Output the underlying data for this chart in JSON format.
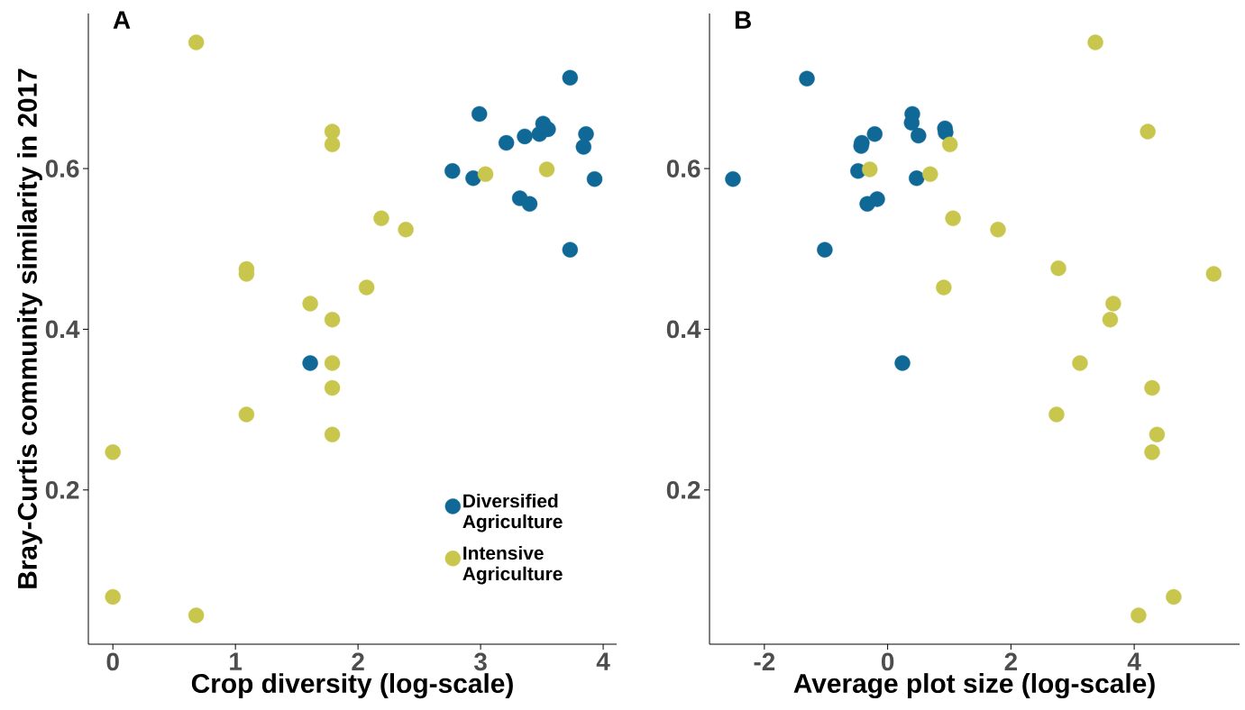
{
  "chart_data": [
    {
      "type": "scatter",
      "title": "A",
      "xlabel": "Crop diversity (log-scale)",
      "ylabel": "Bray-Curtis community similarity in 2017",
      "xlim": [
        -0.2,
        4.11
      ],
      "ylim": [
        0.008,
        0.793
      ],
      "xticks": [
        0,
        1,
        2,
        3,
        4
      ],
      "yticks": [
        0.2,
        0.4,
        0.6
      ],
      "marker": "circle",
      "legend": "bottom right",
      "series": [
        {
          "name": "Diversified Agriculture",
          "color": "#0f6896",
          "x": [
            3.73,
            2.99,
            3.21,
            3.36,
            3.51,
            3.48,
            3.55,
            3.86,
            3.84,
            2.77,
            2.94,
            3.32,
            3.4,
            3.93,
            3.73,
            1.61
          ],
          "values": [
            0.713,
            0.668,
            0.632,
            0.64,
            0.656,
            0.643,
            0.649,
            0.643,
            0.627,
            0.597,
            0.588,
            0.563,
            0.556,
            0.587,
            0.499,
            0.358
          ]
        },
        {
          "name": "Intensive Agriculture",
          "color": "#c8c64c",
          "x": [
            0.68,
            3.04,
            3.54,
            1.79,
            1.79,
            2.19,
            2.39,
            1.09,
            1.09,
            2.07,
            1.61,
            1.79,
            1.79,
            1.79,
            1.09,
            1.79,
            0,
            0,
            0.68
          ],
          "values": [
            0.757,
            0.593,
            0.599,
            0.646,
            0.63,
            0.538,
            0.524,
            0.475,
            0.469,
            0.452,
            0.432,
            0.412,
            0.358,
            0.327,
            0.294,
            0.269,
            0.247,
            0.067,
            0.044
          ]
        }
      ]
    },
    {
      "type": "scatter",
      "title": "B",
      "xlabel": "Average plot size (log-scale)",
      "xlim": [
        -2.89,
        5.71
      ],
      "ylim": [
        0.008,
        0.793
      ],
      "xticks": [
        -2,
        0,
        2,
        4
      ],
      "yticks": [
        0.2,
        0.4,
        0.6
      ],
      "marker": "circle",
      "series": [
        {
          "color": "#0f6896",
          "x": [
            -1.31,
            0.4,
            0.39,
            0.5,
            0.93,
            0.94,
            -0.21,
            -0.42,
            -0.43,
            -0.48,
            0.47,
            -0.33,
            -0.17,
            -2.51,
            -1.02,
            0.24
          ],
          "values": [
            0.712,
            0.668,
            0.657,
            0.641,
            0.65,
            0.645,
            0.643,
            0.632,
            0.628,
            0.597,
            0.588,
            0.556,
            0.562,
            0.587,
            0.499,
            0.358
          ]
        },
        {
          "color": "#c8c64c",
          "x": [
            3.37,
            -0.29,
            0.69,
            1.01,
            4.22,
            1.06,
            1.79,
            2.77,
            5.29,
            0.91,
            3.66,
            3.61,
            3.12,
            4.29,
            2.74,
            4.37,
            4.29,
            4.64,
            4.07
          ],
          "values": [
            0.757,
            0.599,
            0.593,
            0.63,
            0.646,
            0.538,
            0.524,
            0.476,
            0.469,
            0.452,
            0.432,
            0.412,
            0.358,
            0.327,
            0.294,
            0.269,
            0.247,
            0.067,
            0.044
          ]
        }
      ]
    }
  ]
}
